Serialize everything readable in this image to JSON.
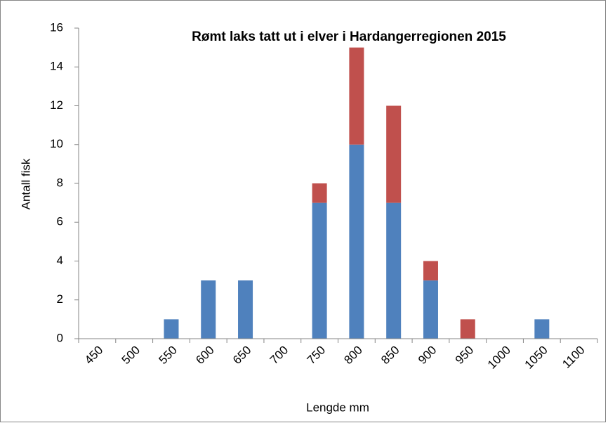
{
  "chart_data": {
    "type": "stacked_bar",
    "title": "Rømt laks tatt ut i elver i Hardangerregionen 2015",
    "xlabel": "Lengde mm",
    "ylabel": "Antall fisk",
    "categories": [
      "450",
      "500",
      "550",
      "600",
      "650",
      "700",
      "750",
      "800",
      "850",
      "900",
      "950",
      "1000",
      "1050",
      "1100"
    ],
    "series": [
      {
        "color": "#4f81bd",
        "values": [
          0,
          0,
          1,
          3,
          3,
          0,
          7,
          10,
          7,
          3,
          0,
          0,
          1,
          0
        ]
      },
      {
        "color": "#c0504d",
        "values": [
          0,
          0,
          0,
          0,
          0,
          0,
          1,
          5,
          5,
          1,
          1,
          0,
          0,
          0
        ]
      }
    ],
    "ylim": [
      0,
      16
    ],
    "yticks": [
      0,
      2,
      4,
      6,
      8,
      10,
      12,
      14,
      16
    ],
    "grid": false
  }
}
